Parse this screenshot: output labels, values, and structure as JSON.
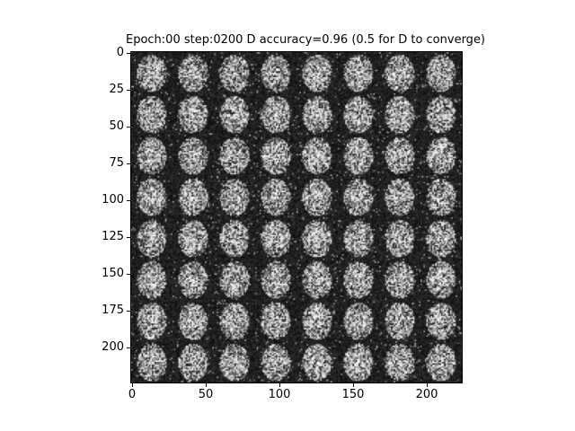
{
  "figure": {
    "title": "Epoch:00 step:0200 D accuracy=0.96 (0.5 for D to converge)"
  },
  "image_grid": {
    "rows": 8,
    "cols": 8,
    "cell_size": 28,
    "extent": 224,
    "colormap": "gray",
    "background": "#000000"
  },
  "axes": {
    "y_ticks": [
      "0",
      "25",
      "50",
      "75",
      "100",
      "125",
      "150",
      "175",
      "200"
    ],
    "y_values": [
      0,
      25,
      50,
      75,
      100,
      125,
      150,
      175,
      200
    ],
    "x_ticks": [
      "0",
      "50",
      "100",
      "150",
      "200"
    ],
    "x_values": [
      0,
      50,
      100,
      150,
      200
    ]
  }
}
